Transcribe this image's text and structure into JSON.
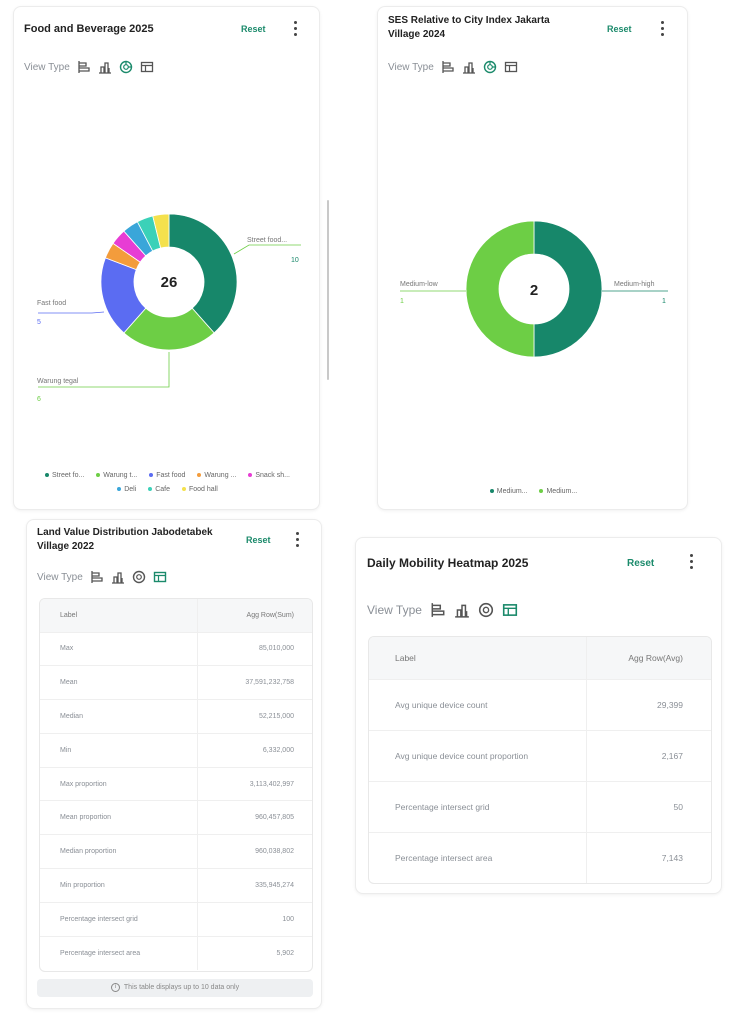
{
  "food": {
    "title": "Food and Beverage 2025",
    "reset": "Reset",
    "view_type": "View Type",
    "center": "26",
    "labels": {
      "street": {
        "name": "Street food...",
        "value": "10"
      },
      "fast": {
        "name": "Fast food",
        "value": "5"
      },
      "warung": {
        "name": "Warung tegal",
        "value": "6"
      }
    },
    "legend": [
      {
        "label": "Street fo...",
        "color": "#17876a"
      },
      {
        "label": "Warung t...",
        "color": "#6dce45"
      },
      {
        "label": "Fast food",
        "color": "#5b6cf2"
      },
      {
        "label": "Warung ...",
        "color": "#f39c3c"
      },
      {
        "label": "Snack sh...",
        "color": "#e73dd4"
      },
      {
        "label": "Deli",
        "color": "#3aa6d9"
      },
      {
        "label": "Cafe",
        "color": "#3bd1b8"
      },
      {
        "label": "Food hall",
        "color": "#f4e14d"
      }
    ]
  },
  "ses": {
    "title_line1": "SES Relative to City Index Jakarta",
    "title_line2": "Village 2024",
    "reset": "Reset",
    "view_type": "View Type",
    "center": "2",
    "labels": {
      "low": {
        "name": "Medium-low",
        "value": "1"
      },
      "high": {
        "name": "Medium-high",
        "value": "1"
      }
    },
    "legend": [
      {
        "label": "Medium...",
        "color": "#17876a"
      },
      {
        "label": "Medium...",
        "color": "#6dce45"
      }
    ]
  },
  "land": {
    "title_line1": "Land Value Distribution Jabodetabek",
    "title_line2": "Village 2022",
    "reset": "Reset",
    "view_type": "View Type",
    "headers": {
      "label": "Label",
      "value": "Agg Row(Sum)"
    },
    "rows": [
      {
        "label": "Max",
        "value": "85,010,000"
      },
      {
        "label": "Mean",
        "value": "37,591,232,758"
      },
      {
        "label": "Median",
        "value": "52,215,000"
      },
      {
        "label": "Min",
        "value": "6,332,000"
      },
      {
        "label": "Max proportion",
        "value": "3,113,402,997"
      },
      {
        "label": "Mean proportion",
        "value": "960,457,805"
      },
      {
        "label": "Median proportion",
        "value": "960,038,802"
      },
      {
        "label": "Min proportion",
        "value": "335,945,274"
      },
      {
        "label": "Percentage intersect grid",
        "value": "100"
      },
      {
        "label": "Percentage intersect area",
        "value": "5,902"
      }
    ],
    "note": "This table displays up to 10 data only"
  },
  "mobility": {
    "title": "Daily Mobility Heatmap 2025",
    "reset": "Reset",
    "view_type": "View Type",
    "headers": {
      "label": "Label",
      "value": "Agg Row(Avg)"
    },
    "rows": [
      {
        "label": "Avg unique device count",
        "value": "29,399"
      },
      {
        "label": "Avg unique device count proportion",
        "value": "2,167"
      },
      {
        "label": "Percentage intersect grid",
        "value": "50"
      },
      {
        "label": "Percentage intersect area",
        "value": "7,143"
      }
    ]
  },
  "icons": [
    "bar-horizontal-icon",
    "bar-vertical-icon",
    "donut-icon",
    "table-icon"
  ],
  "colors": {
    "accent": "#1b8a6b",
    "dark_green": "#17876a",
    "light_green": "#6dce45"
  }
}
